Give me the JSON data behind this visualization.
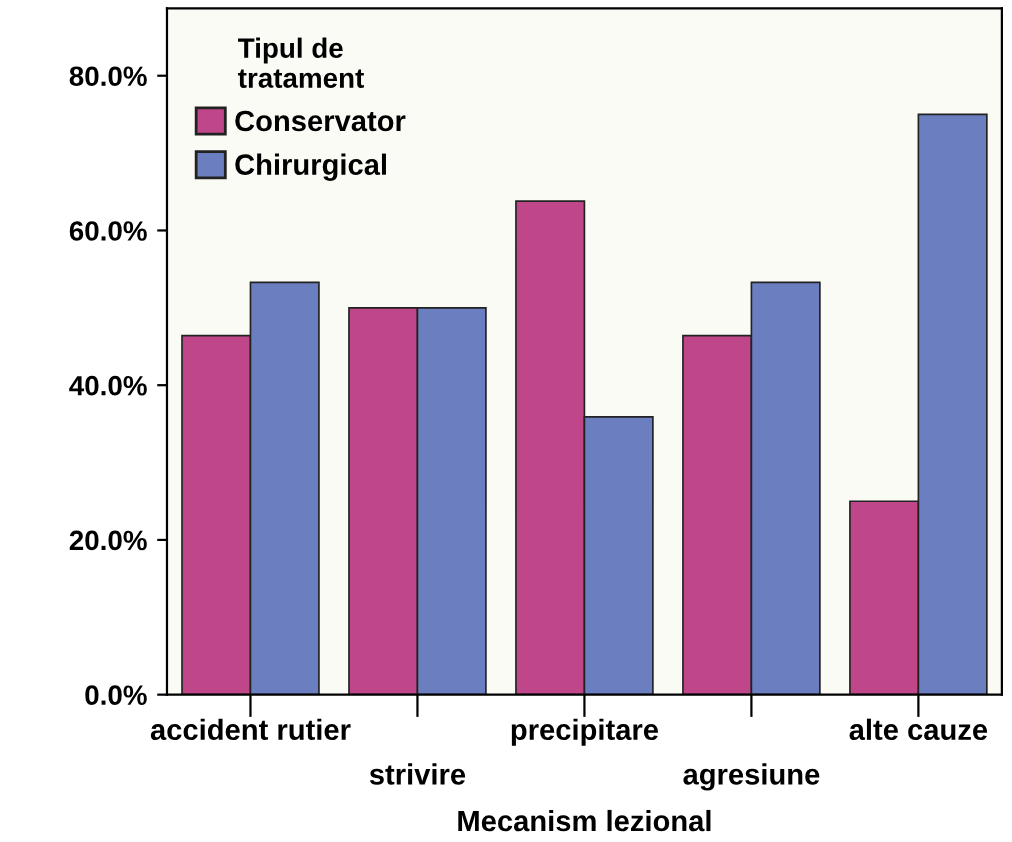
{
  "chart_data": {
    "type": "bar",
    "xlabel": "Mecanism lezional",
    "legend_title": "Tipul de\ntratament",
    "categories": [
      "accident rutier",
      "strivire",
      "precipitare",
      "agresiune",
      "alte cauze"
    ],
    "series": [
      {
        "name": "Conservator",
        "color": "#c0468a",
        "values": [
          46.4,
          50.0,
          63.8,
          46.4,
          25.0
        ]
      },
      {
        "name": "Chirurgical",
        "color": "#6b7fc0",
        "values": [
          53.3,
          50.0,
          35.9,
          53.3,
          75.0
        ]
      }
    ],
    "ylim": [
      0,
      88.7
    ],
    "yticks": [
      {
        "value": 0,
        "label": "0.0%"
      },
      {
        "value": 20,
        "label": "20.0%"
      },
      {
        "value": 40,
        "label": "40.0%"
      },
      {
        "value": 60,
        "label": "60.0%"
      },
      {
        "value": 80,
        "label": "80.0%"
      }
    ],
    "grid": false,
    "legend": "top left"
  }
}
